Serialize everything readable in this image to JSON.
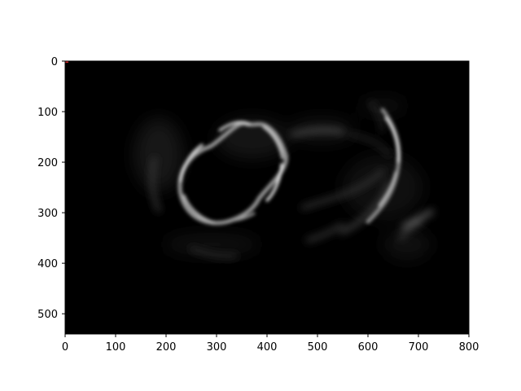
{
  "image": {
    "description_kind": "grayscale image plotted with axes",
    "background_color": "#000000",
    "marker_color": "#d62728"
  },
  "axes": {
    "x": {
      "lim": [
        0,
        800
      ],
      "ticks": [
        "0",
        "100",
        "200",
        "300",
        "400",
        "500",
        "600",
        "700",
        "800"
      ]
    },
    "y": {
      "lim": [
        0,
        540
      ],
      "inverted": true,
      "ticks": [
        "0",
        "100",
        "200",
        "300",
        "400",
        "500"
      ]
    },
    "grid": false
  }
}
